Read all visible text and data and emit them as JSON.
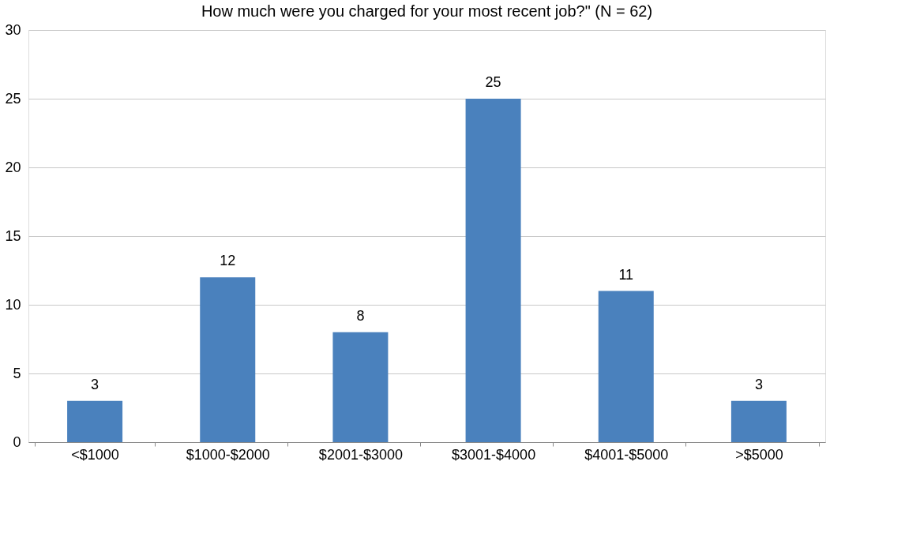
{
  "chart_data": {
    "type": "bar",
    "title": "How much were you charged for your most recent job?\" (N = 62)",
    "categories": [
      "<$1000",
      "$1000-$2000",
      "$2001-$3000",
      "$3001-$4000",
      "$4001-$5000",
      ">$5000"
    ],
    "values": [
      3,
      12,
      8,
      25,
      11,
      3
    ],
    "color": "#4a81bd",
    "ylim": [
      0,
      30
    ],
    "yticks": [
      0,
      5,
      10,
      15,
      20,
      25,
      30
    ],
    "grid": "y",
    "data_labels": true
  }
}
